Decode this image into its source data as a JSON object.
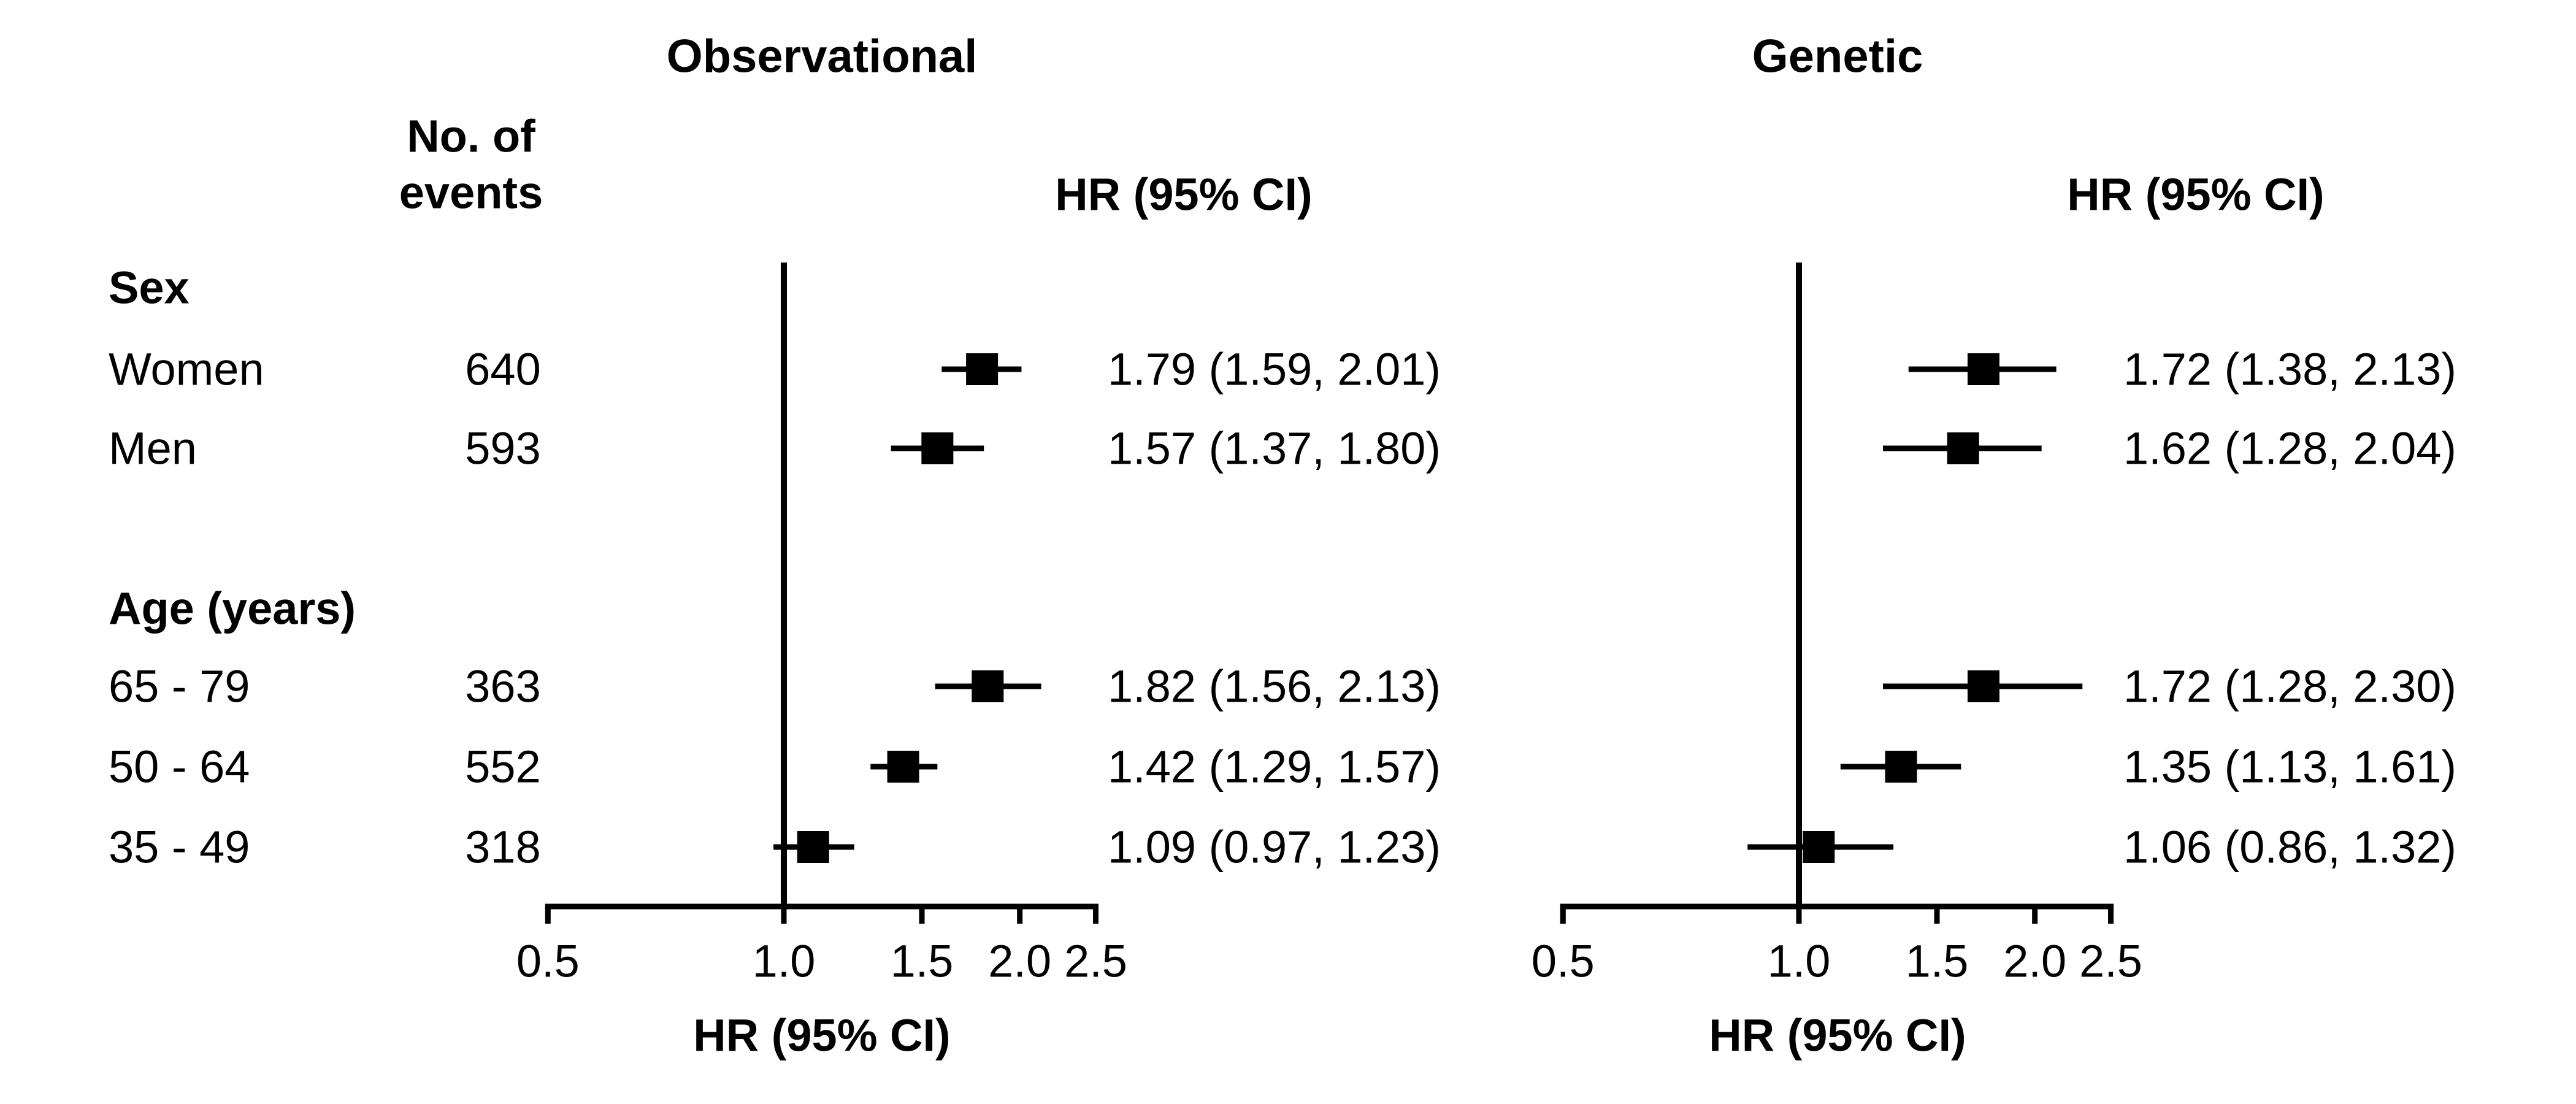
{
  "figure": {
    "background": "#ffffff",
    "ink": "#000000"
  },
  "header": {
    "events_line1": "No. of",
    "events_line2": "events",
    "hr": "HR (95% CI)"
  },
  "chart_data": {
    "type": "forest",
    "scale": "log",
    "xlabel": "HR (95% CI)",
    "xlim": [
      0.5,
      2.5
    ],
    "ticks": [
      0.5,
      1.0,
      1.5,
      2.0,
      2.5
    ],
    "tick_labels": [
      "0.5",
      "1.0",
      "1.5",
      "2.0",
      "2.5"
    ],
    "reference_line": 1.0,
    "grid": "off",
    "panels": [
      {
        "id": "observational",
        "title": "Observational"
      },
      {
        "id": "genetic",
        "title": "Genetic"
      }
    ],
    "groups": [
      {
        "label": "Sex",
        "rows": [
          {
            "label": "Women",
            "events": "640",
            "observational": {
              "hr": 1.79,
              "lo": 1.59,
              "hi": 2.01,
              "text": "1.79 (1.59, 2.01)"
            },
            "genetic": {
              "hr": 1.72,
              "lo": 1.38,
              "hi": 2.13,
              "text": "1.72 (1.38, 2.13)"
            }
          },
          {
            "label": "Men",
            "events": "593",
            "observational": {
              "hr": 1.57,
              "lo": 1.37,
              "hi": 1.8,
              "text": "1.57 (1.37, 1.80)"
            },
            "genetic": {
              "hr": 1.62,
              "lo": 1.28,
              "hi": 2.04,
              "text": "1.62 (1.28, 2.04)"
            }
          }
        ]
      },
      {
        "label": "Age (years)",
        "rows": [
          {
            "label": "65 - 79",
            "events": "363",
            "observational": {
              "hr": 1.82,
              "lo": 1.56,
              "hi": 2.13,
              "text": "1.82 (1.56, 2.13)"
            },
            "genetic": {
              "hr": 1.72,
              "lo": 1.28,
              "hi": 2.3,
              "text": "1.72 (1.28, 2.30)"
            }
          },
          {
            "label": "50 - 64",
            "events": "552",
            "observational": {
              "hr": 1.42,
              "lo": 1.29,
              "hi": 1.57,
              "text": "1.42 (1.29, 1.57)"
            },
            "genetic": {
              "hr": 1.35,
              "lo": 1.13,
              "hi": 1.61,
              "text": "1.35 (1.13, 1.61)"
            }
          },
          {
            "label": "35 - 49",
            "events": "318",
            "observational": {
              "hr": 1.09,
              "lo": 0.97,
              "hi": 1.23,
              "text": "1.09 (0.97, 1.23)"
            },
            "genetic": {
              "hr": 1.06,
              "lo": 0.86,
              "hi": 1.32,
              "text": "1.06 (0.86, 1.32)"
            }
          }
        ]
      }
    ]
  }
}
